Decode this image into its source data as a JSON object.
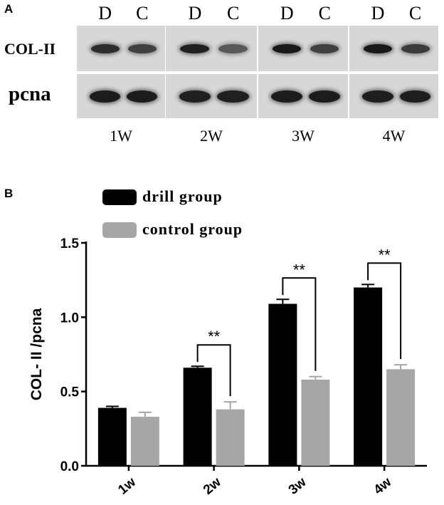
{
  "panel_a": {
    "label": "A",
    "lane_headers": [
      "D",
      "C",
      "D",
      "C",
      "D",
      "C",
      "D",
      "C"
    ],
    "row_labels": [
      "COL-II",
      "pcna"
    ],
    "weeks": [
      "1W",
      "2W",
      "3W",
      "4W"
    ],
    "band_intensity": {
      "COL-II": [
        0.72,
        0.55,
        0.82,
        0.35,
        0.88,
        0.55,
        0.88,
        0.6
      ],
      "pcna": [
        0.85,
        0.85,
        0.82,
        0.82,
        0.85,
        0.85,
        0.83,
        0.83
      ]
    }
  },
  "panel_b": {
    "label": "B"
  },
  "chart_data": {
    "type": "bar",
    "categories": [
      "1w",
      "2w",
      "3w",
      "4w"
    ],
    "series": [
      {
        "name": "drill group",
        "values": [
          0.39,
          0.66,
          1.09,
          1.2
        ],
        "errors": [
          0.01,
          0.01,
          0.03,
          0.02
        ],
        "color": "#000000"
      },
      {
        "name": "control group",
        "values": [
          0.33,
          0.38,
          0.58,
          0.65
        ],
        "errors": [
          0.03,
          0.05,
          0.02,
          0.03
        ],
        "color": "#a6a6a6"
      }
    ],
    "ylabel": "COL- II /pcna",
    "xlabel": "",
    "ylim": [
      0,
      1.5
    ],
    "yticks": [
      "0.0",
      "0.5",
      "1.0",
      "1.5"
    ],
    "significance": [
      {
        "category": "2w",
        "label": "**"
      },
      {
        "category": "3w",
        "label": "**"
      },
      {
        "category": "4w",
        "label": "**"
      }
    ],
    "legend_position": "top-left"
  }
}
